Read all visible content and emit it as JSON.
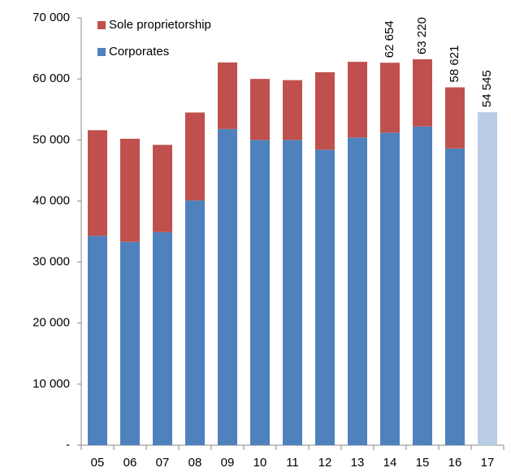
{
  "chart_data": {
    "type": "stacked_bar",
    "categories": [
      "05",
      "06",
      "07",
      "08",
      "09",
      "10",
      "11",
      "12",
      "13",
      "14",
      "15",
      "16",
      "17"
    ],
    "series": [
      {
        "name": "Corporates",
        "color": "#4f81bd",
        "colors": [
          "#4f81bd",
          "#4f81bd",
          "#4f81bd",
          "#4f81bd",
          "#4f81bd",
          "#4f81bd",
          "#4f81bd",
          "#4f81bd",
          "#4f81bd",
          "#4f81bd",
          "#4f81bd",
          "#4f81bd",
          "#b9cde5"
        ],
        "values": [
          34300,
          33300,
          34900,
          40100,
          51800,
          50000,
          50000,
          48400,
          50400,
          51200,
          52200,
          48600,
          54545
        ]
      },
      {
        "name": "Sole proprietorship",
        "color": "#c0504d",
        "values": [
          17300,
          16900,
          14300,
          14400,
          10900,
          10000,
          9800,
          12700,
          12400,
          11454,
          11020,
          10021,
          null
        ]
      }
    ],
    "totals": [
      null,
      null,
      null,
      null,
      null,
      null,
      null,
      null,
      null,
      62654,
      63220,
      58621,
      54545
    ],
    "total_labels": [
      null,
      null,
      null,
      null,
      null,
      null,
      null,
      null,
      null,
      "62 654",
      "63 220",
      "58 621",
      "54 545"
    ],
    "ylim": [
      0,
      70000
    ],
    "yticks": [
      {
        "value": 0,
        "label": "-"
      },
      {
        "value": 10000,
        "label": "10 000"
      },
      {
        "value": 20000,
        "label": "20 000"
      },
      {
        "value": 30000,
        "label": "30 000"
      },
      {
        "value": 40000,
        "label": "40 000"
      },
      {
        "value": 50000,
        "label": "50 000"
      },
      {
        "value": 60000,
        "label": "60 000"
      },
      {
        "value": 70000,
        "label": "70 000"
      }
    ],
    "legend": "top-left"
  }
}
